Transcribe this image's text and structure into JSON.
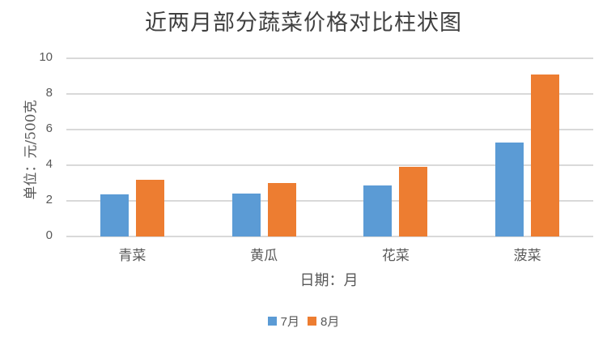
{
  "chart_data": {
    "type": "bar",
    "title": "近两月部分蔬菜价格对比柱状图",
    "xlabel": "日期：月",
    "ylabel": "单位：元/500克",
    "categories": [
      "青菜",
      "黄瓜",
      "花菜",
      "菠菜"
    ],
    "series": [
      {
        "name": "7月",
        "color": "#5b9bd5",
        "values": [
          2.36,
          2.41,
          2.86,
          5.26
        ]
      },
      {
        "name": "8月",
        "color": "#ed7d31",
        "values": [
          3.18,
          2.97,
          3.91,
          9.09
        ]
      }
    ],
    "ylim": [
      0,
      10
    ],
    "yticks": [
      "0",
      "2",
      "4",
      "6",
      "8",
      "10"
    ],
    "grid": true,
    "legend_position": "bottom"
  }
}
